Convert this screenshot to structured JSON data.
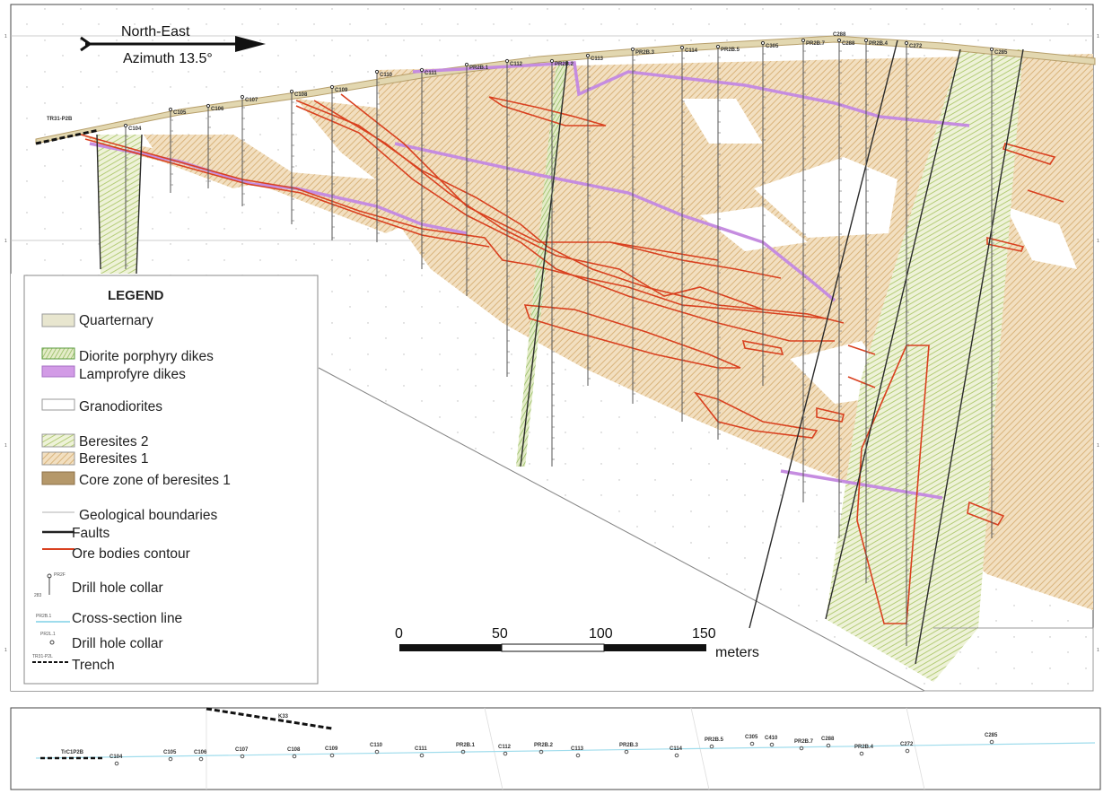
{
  "direction": {
    "name": "North-East",
    "azimuth": "Azimuth 13.5°"
  },
  "trench_label": "TR31-P2B",
  "legend": {
    "title": "LEGEND",
    "items": [
      {
        "label": "Quarternary",
        "color": "#e8e6cf"
      },
      {
        "label": "Diorite porphyry dikes",
        "color": "#2fa84a"
      },
      {
        "label": "Lamprofyre dikes",
        "color": "#d29be6"
      },
      {
        "label": "Granodiorites",
        "color": "#ffffff"
      },
      {
        "label": "Beresites 2",
        "color": "#dfe49a"
      },
      {
        "label": "Beresites 1",
        "color": "#e8c08a"
      },
      {
        "label": "Core zone of beresites 1",
        "color": "#b5986a"
      },
      {
        "label": "Geological boundaries",
        "color": "#cccccc"
      },
      {
        "label": "Faults",
        "color": "#222222"
      },
      {
        "label": "Ore bodies contour",
        "color": "#d9401f"
      },
      {
        "label": "Drill hole collar",
        "color": "#444444"
      },
      {
        "label": "Cross-section line",
        "color": "#7fd0e6"
      },
      {
        "label": "Drill hole collar",
        "color": "#444444"
      },
      {
        "label": "Trench",
        "color": "#111111"
      }
    ]
  },
  "scale": {
    "ticks": [
      "0",
      "50",
      "100",
      "150"
    ],
    "unit": "meters"
  },
  "drill_holes": [
    "C104",
    "C105",
    "C106",
    "C107",
    "C108",
    "C109",
    "C110",
    "C111",
    "PR2B.1",
    "C112",
    "PR2B.2",
    "C113",
    "PR2B.3",
    "C114",
    "PR2B.5",
    "C305",
    "C410",
    "PR2B.7",
    "C288",
    "PR2B.4",
    "C272",
    "C285"
  ],
  "plan": {
    "trench_left": "TrC1P2B",
    "trench_top": "K33",
    "holes": [
      "C104",
      "C105",
      "C106",
      "C107",
      "C108",
      "C109",
      "C110",
      "C111",
      "PR2B.1",
      "C112",
      "PR2B.2",
      "C113",
      "PR2B.3",
      "C114",
      "PR2B.5",
      "C305",
      "C410",
      "PR2B.7",
      "C288",
      "PR2B.4",
      "C272",
      "C285"
    ]
  },
  "colors": {
    "ore": "#d9401f",
    "lamp": "#c58ce0",
    "beresite": "#e6c48e",
    "dike": "#b8d890",
    "fault": "#2a2a2a"
  }
}
